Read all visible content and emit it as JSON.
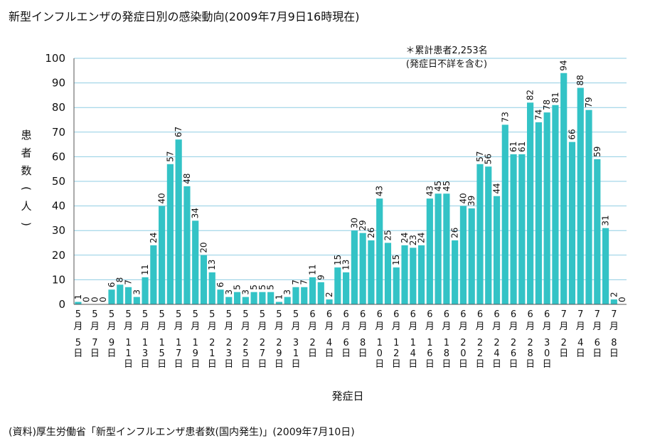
{
  "title": "新型インフルエンザの発症日別の感染動向(2009年7月9日16時現在)",
  "source": "(資料)厚生労働省「新型インフルエンザ患者数(国内発生)」(2009年7月10日)",
  "chart_data": {
    "type": "bar",
    "ylim": [
      0,
      100
    ],
    "yticks": [
      0,
      10,
      20,
      30,
      40,
      50,
      60,
      70,
      80,
      90,
      100
    ],
    "ylabel": "患者数(人)",
    "xlabel": "発症日",
    "grid": true,
    "bar_color": "#33c3c6",
    "note_lines": [
      "＊累計患者2,253名",
      "(発症日不詳を含む)"
    ],
    "x_labels_month": [
      "5月",
      "5月",
      "5月",
      "5月",
      "5月",
      "5月",
      "5月",
      "5月",
      "5月",
      "5月",
      "5月",
      "5月",
      "5月",
      "5月",
      "6月",
      "6月",
      "6月",
      "6月",
      "6月",
      "6月",
      "6月",
      "6月",
      "6月",
      "6月",
      "6月",
      "6月",
      "6月",
      "6月",
      "6月",
      "7月",
      "7月",
      "7月",
      "7月"
    ],
    "x_labels_day": [
      "5日",
      "7日",
      "9日",
      "11日",
      "13日",
      "15日",
      "17日",
      "19日",
      "21日",
      "23日",
      "25日",
      "27日",
      "29日",
      "31日",
      "2日",
      "4日",
      "6日",
      "8日",
      "10日",
      "12日",
      "14日",
      "16日",
      "18日",
      "20日",
      "22日",
      "24日",
      "26日",
      "28日",
      "30日",
      "2日",
      "4日",
      "6日",
      "8日"
    ],
    "values": [
      1,
      0,
      0,
      0,
      6,
      8,
      7,
      3,
      11,
      24,
      40,
      57,
      67,
      48,
      34,
      20,
      13,
      6,
      3,
      5,
      3,
      5,
      5,
      5,
      1,
      3,
      7,
      7,
      11,
      9,
      2,
      15,
      13,
      30,
      29,
      26,
      43,
      25,
      15,
      24,
      23,
      24,
      43,
      45,
      45,
      26,
      40,
      39,
      57,
      56,
      44,
      73,
      61,
      61,
      82,
      74,
      78,
      81,
      94,
      66,
      88,
      79,
      59,
      31,
      2,
      0
    ]
  }
}
